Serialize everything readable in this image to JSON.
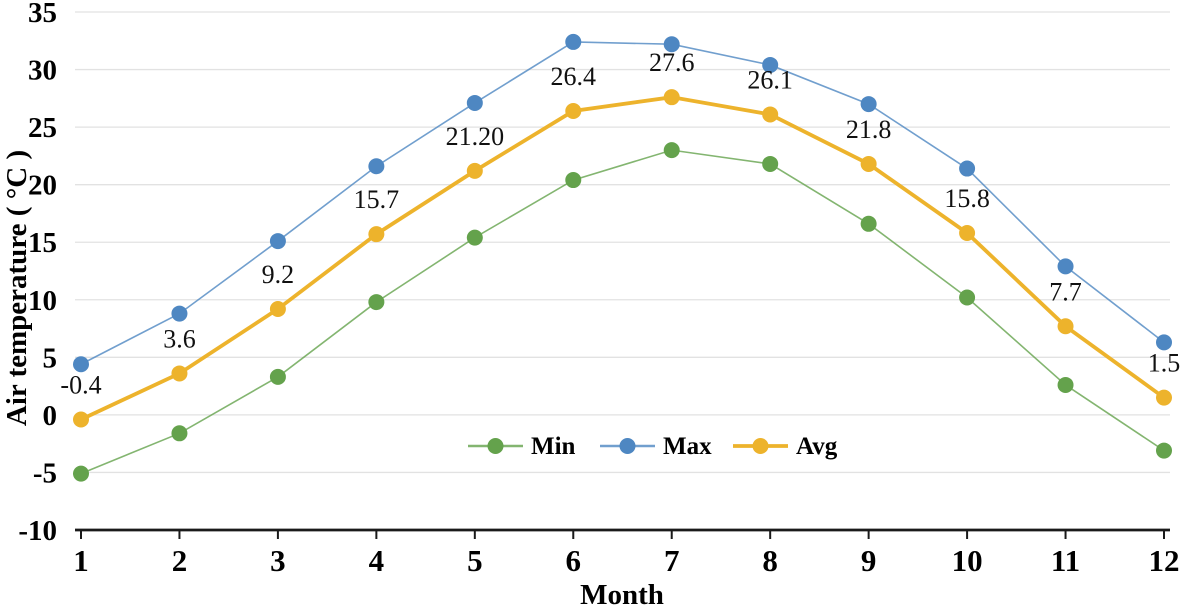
{
  "chart_data": {
    "type": "line",
    "title": "",
    "xlabel": "Month",
    "ylabel": "Air temperature ( °C )",
    "x": [
      1,
      2,
      3,
      4,
      5,
      6,
      7,
      8,
      9,
      10,
      11,
      12
    ],
    "xtick_labels": [
      "1",
      "2",
      "3",
      "4",
      "5",
      "6",
      "7",
      "8",
      "9",
      "10",
      "11",
      "12"
    ],
    "ytick_labels": [
      "35",
      "30",
      "25",
      "20",
      "15",
      "10",
      "5",
      "0",
      "-5",
      "-10"
    ],
    "ylim": [
      -10,
      35
    ],
    "ytick_step": 5,
    "grid": "horizontal",
    "legend_position": "inside-bottom-center",
    "series": [
      {
        "name": "Min",
        "color": "#64A24C",
        "marker": "circle",
        "line_width": 1.6,
        "line_opacity": 0.8,
        "values": [
          -5.1,
          -1.6,
          3.3,
          9.8,
          15.4,
          20.4,
          23.0,
          21.8,
          16.6,
          10.2,
          2.6,
          -3.1
        ]
      },
      {
        "name": "Max",
        "color": "#4E87C2",
        "marker": "circle",
        "line_width": 1.6,
        "line_opacity": 0.8,
        "values": [
          4.4,
          8.8,
          15.1,
          21.6,
          27.1,
          32.4,
          32.2,
          30.4,
          27.0,
          21.4,
          12.9,
          6.3
        ]
      },
      {
        "name": "Avg",
        "color": "#EDB32C",
        "marker": "circle",
        "line_width": 3.8,
        "line_opacity": 1,
        "values": [
          -0.4,
          3.6,
          9.2,
          15.7,
          21.2,
          26.4,
          27.6,
          26.1,
          21.8,
          15.8,
          7.7,
          1.5
        ],
        "data_labels": [
          "-0.4",
          "3.6",
          "9.2",
          "15.7",
          "21.20",
          "26.4",
          "27.6",
          "26.1",
          "21.8",
          "15.8",
          "7.7",
          "1.5"
        ]
      }
    ],
    "colors": {
      "gridline": "#E2E2E2",
      "axis": "#1a1a1a",
      "background": "#ffffff"
    }
  }
}
